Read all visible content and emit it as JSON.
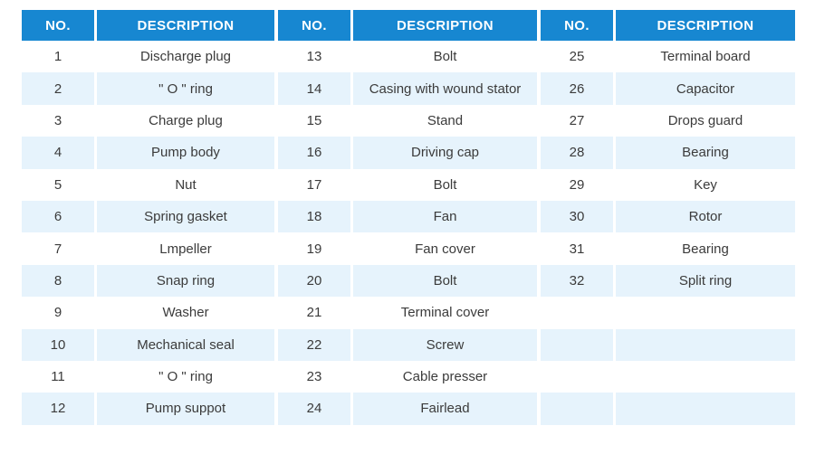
{
  "colors": {
    "header_bg": "#1787d1",
    "row_alt_bg": "#e6f3fc",
    "text": "#3b3b3b",
    "header_text": "#ffffff"
  },
  "table": {
    "header": {
      "no_label": "NO.",
      "description_label": "DESCRIPTION"
    },
    "groups": [
      {
        "rows": [
          {
            "no": "1",
            "description": "Discharge plug"
          },
          {
            "no": "2",
            "description": "\" O \" ring"
          },
          {
            "no": "3",
            "description": "Charge plug"
          },
          {
            "no": "4",
            "description": "Pump body"
          },
          {
            "no": "5",
            "description": "Nut"
          },
          {
            "no": "6",
            "description": "Spring gasket"
          },
          {
            "no": "7",
            "description": "Lmpeller"
          },
          {
            "no": "8",
            "description": "Snap ring"
          },
          {
            "no": "9",
            "description": "Washer"
          },
          {
            "no": "10",
            "description": "Mechanical seal"
          },
          {
            "no": "11",
            "description": "\" O \" ring"
          },
          {
            "no": "12",
            "description": "Pump suppot"
          }
        ]
      },
      {
        "rows": [
          {
            "no": "13",
            "description": "Bolt"
          },
          {
            "no": "14",
            "description": "Casing with wound stator"
          },
          {
            "no": "15",
            "description": "Stand"
          },
          {
            "no": "16",
            "description": "Driving cap"
          },
          {
            "no": "17",
            "description": "Bolt"
          },
          {
            "no": "18",
            "description": "Fan"
          },
          {
            "no": "19",
            "description": "Fan cover"
          },
          {
            "no": "20",
            "description": "Bolt"
          },
          {
            "no": "21",
            "description": "Terminal cover"
          },
          {
            "no": "22",
            "description": "Screw"
          },
          {
            "no": "23",
            "description": "Cable presser"
          },
          {
            "no": "24",
            "description": "Fairlead"
          }
        ]
      },
      {
        "rows": [
          {
            "no": "25",
            "description": "Terminal board"
          },
          {
            "no": "26",
            "description": "Capacitor"
          },
          {
            "no": "27",
            "description": "Drops guard"
          },
          {
            "no": "28",
            "description": "Bearing"
          },
          {
            "no": "29",
            "description": "Key"
          },
          {
            "no": "30",
            "description": "Rotor"
          },
          {
            "no": "31",
            "description": "Bearing"
          },
          {
            "no": "32",
            "description": "Split ring"
          },
          {
            "no": "",
            "description": ""
          },
          {
            "no": "",
            "description": ""
          },
          {
            "no": "",
            "description": ""
          },
          {
            "no": "",
            "description": ""
          }
        ]
      }
    ]
  }
}
